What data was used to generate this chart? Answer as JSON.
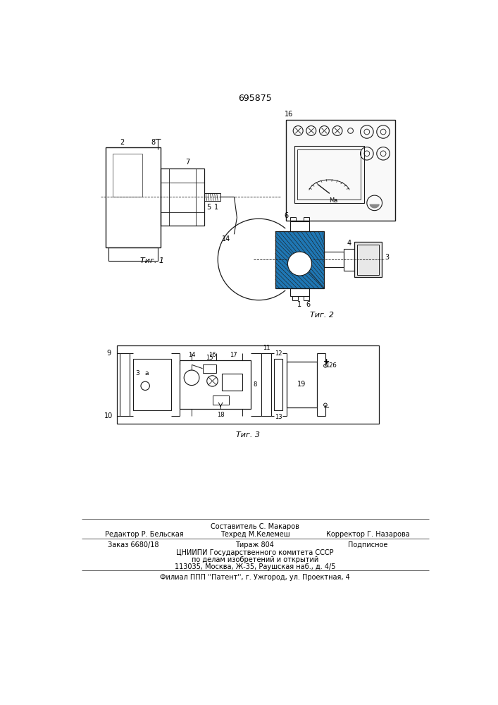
{
  "patent_number": "695875",
  "bg": "#ffffff",
  "lc": "#1a1a1a",
  "fig1_label": "Τиг.1",
  "fig2_label": "Τиг.2",
  "fig3_label": "Τиг.3"
}
